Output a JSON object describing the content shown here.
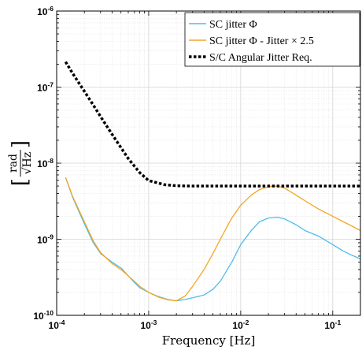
{
  "chart_data": {
    "type": "line",
    "title": "",
    "xlabel": "Frequency [Hz]",
    "ylabel": "[ rad / √Hz ]",
    "ylabel_num": "rad",
    "ylabel_den": "√Hz",
    "xscale": "log",
    "yscale": "log",
    "xlim": [
      0.0001,
      0.2
    ],
    "ylim": [
      1e-10,
      1e-06
    ],
    "x_ticks": [
      {
        "value": 0.0001,
        "base": "10",
        "exp": "-4"
      },
      {
        "value": 0.001,
        "base": "10",
        "exp": "-3"
      },
      {
        "value": 0.01,
        "base": "10",
        "exp": "-2"
      },
      {
        "value": 0.1,
        "base": "10",
        "exp": "-1"
      }
    ],
    "y_ticks": [
      {
        "value": 1e-10,
        "base": "10",
        "exp": "-10"
      },
      {
        "value": 1e-09,
        "base": "10",
        "exp": "-9"
      },
      {
        "value": 1e-08,
        "base": "10",
        "exp": "-8"
      },
      {
        "value": 1e-07,
        "base": "10",
        "exp": "-7"
      },
      {
        "value": 1e-06,
        "base": "10",
        "exp": "-6"
      }
    ],
    "grid": true,
    "legend_position": "top-right",
    "series": [
      {
        "name": "SC jitter Φ",
        "color": "#4DBEEE",
        "style": "solid",
        "x": [
          0.000125,
          0.00015,
          0.0002,
          0.00025,
          0.0003,
          0.0004,
          0.0005,
          0.0006,
          0.0007,
          0.0008,
          0.001,
          0.0013,
          0.0016,
          0.002,
          0.0025,
          0.003,
          0.004,
          0.005,
          0.006,
          0.008,
          0.01,
          0.013,
          0.016,
          0.02,
          0.025,
          0.03,
          0.04,
          0.05,
          0.07,
          0.1,
          0.13,
          0.16,
          0.2
        ],
        "y": [
          6.5e-09,
          3.5e-09,
          1.6e-09,
          9e-10,
          6.5e-10,
          5e-10,
          4.2e-10,
          3.3e-10,
          2.7e-10,
          2.3e-10,
          2e-10,
          1.75e-10,
          1.62e-10,
          1.55e-10,
          1.62e-10,
          1.7e-10,
          1.85e-10,
          2.2e-10,
          2.8e-10,
          5e-10,
          8.5e-10,
          1.3e-09,
          1.7e-09,
          1.9e-09,
          1.95e-09,
          1.85e-09,
          1.55e-09,
          1.3e-09,
          1.1e-09,
          8.5e-10,
          7e-10,
          6.2e-10,
          5.5e-10
        ]
      },
      {
        "name": "SC jitter Φ - Jitter × 2.5",
        "color": "#F5A623",
        "style": "solid",
        "x": [
          0.000125,
          0.00015,
          0.0002,
          0.00025,
          0.0003,
          0.0004,
          0.0005,
          0.0006,
          0.0007,
          0.0008,
          0.001,
          0.0013,
          0.0016,
          0.002,
          0.0025,
          0.003,
          0.004,
          0.005,
          0.006,
          0.008,
          0.01,
          0.013,
          0.016,
          0.02,
          0.025,
          0.03,
          0.04,
          0.05,
          0.07,
          0.1,
          0.13,
          0.16,
          0.2
        ],
        "y": [
          6.5e-09,
          3.6e-09,
          1.7e-09,
          9.5e-10,
          6.7e-10,
          4.8e-10,
          4e-10,
          3.3e-10,
          2.8e-10,
          2.4e-10,
          2e-10,
          1.72e-10,
          1.6e-10,
          1.55e-10,
          1.8e-10,
          2.4e-10,
          4e-10,
          6.5e-10,
          1e-09,
          1.9e-09,
          2.8e-09,
          3.8e-09,
          4.5e-09,
          4.9e-09,
          5e-09,
          4.7e-09,
          3.8e-09,
          3.2e-09,
          2.5e-09,
          2e-09,
          1.7e-09,
          1.5e-09,
          1.3e-09
        ]
      },
      {
        "name": "S/C Angular Jitter Req.",
        "color": "#000000",
        "style": "dotted",
        "x": [
          0.000125,
          0.00015,
          0.0002,
          0.00025,
          0.0003,
          0.0004,
          0.0005,
          0.0006,
          0.0008,
          0.001,
          0.0015,
          0.002,
          0.003,
          0.005,
          0.01,
          0.02,
          0.05,
          0.1,
          0.2
        ],
        "y": [
          2.15e-07,
          1.5e-07,
          8.8e-08,
          5.8e-08,
          4.1e-08,
          2.4e-08,
          1.6e-08,
          1.15e-08,
          7.5e-09,
          5.9e-09,
          5.2e-09,
          5.05e-09,
          5e-09,
          5e-09,
          5e-09,
          5e-09,
          5e-09,
          5e-09,
          5e-09
        ]
      }
    ]
  }
}
